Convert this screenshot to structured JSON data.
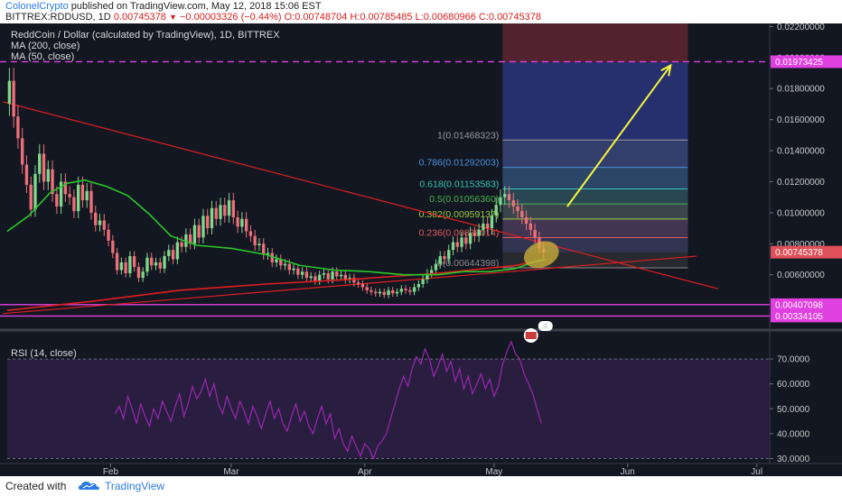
{
  "header": {
    "author": "ColonelCrypto",
    "published_text": "published on TradingView.com, May 12, 2018 15:06 EST",
    "symbol": "BITTREX:RDDUSD, 1D",
    "last": "0.00745378",
    "change": "−0.00003326 (−0.44%)",
    "ohlc": "O:0.00748704 H:0.00785485 L:0.00680966 C:0.00745378"
  },
  "legend": {
    "title": "ReddCoin / Dollar (calculated by TradingView), 1D, BITTREX",
    "ma200": "MA (200, close)",
    "ma50": "MA (50, close)",
    "rsi": "RSI (14, close)"
  },
  "footer": {
    "created_with": "Created with",
    "brand": "TradingView"
  },
  "colors": {
    "background": "#131722",
    "candle_up": "#7fd88c",
    "candle_down": "#ef6f7a",
    "ma50": "#28c828",
    "ma200": "#e01e1e",
    "level": "#e040e0",
    "arrow": "#f5f53c"
  },
  "icon_badge": "4",
  "chart_data": [
    {
      "type": "candlestick",
      "title": "ReddCoin / Dollar (calculated by TradingView), 1D, BITTREX",
      "x_range": [
        "2018-01-08",
        "2018-07-04"
      ],
      "x_ticks": [
        {
          "date": "2018-02-01",
          "label": "Feb"
        },
        {
          "date": "2018-03-01",
          "label": "Mar"
        },
        {
          "date": "2018-04-01",
          "label": "Apr"
        },
        {
          "date": "2018-05-01",
          "label": "May"
        },
        {
          "date": "2018-06-01",
          "label": "Jun"
        },
        {
          "date": "2018-07-01",
          "label": "Jul"
        }
      ],
      "ylim": [
        0.0029,
        0.0222
      ],
      "y_ticks": [
        "0.00600000",
        "0.00800000",
        "0.01000000",
        "0.01200000",
        "0.01400000",
        "0.01600000",
        "0.01800000",
        "0.02000000",
        "0.02200000"
      ],
      "last_price": {
        "value": 0.00745378,
        "label": "0.00745378"
      },
      "closes": [
        0.0185,
        0.0162,
        0.0148,
        0.0131,
        0.0118,
        0.0102,
        0.0125,
        0.0138,
        0.012,
        0.0128,
        0.0112,
        0.0104,
        0.012,
        0.0112,
        0.011,
        0.0101,
        0.0118,
        0.0108,
        0.0114,
        0.01,
        0.0092,
        0.0095,
        0.0089,
        0.0082,
        0.0074,
        0.0063,
        0.0068,
        0.0061,
        0.0072,
        0.0065,
        0.0058,
        0.0062,
        0.0071,
        0.0066,
        0.0068,
        0.0064,
        0.0072,
        0.0076,
        0.007,
        0.0081,
        0.0078,
        0.0086,
        0.008,
        0.0092,
        0.0084,
        0.0098,
        0.009,
        0.0103,
        0.0096,
        0.0105,
        0.0098,
        0.0108,
        0.0097,
        0.0091,
        0.0096,
        0.0088,
        0.0085,
        0.0079,
        0.008,
        0.0073,
        0.0074,
        0.0068,
        0.007,
        0.0066,
        0.0067,
        0.0063,
        0.0064,
        0.006,
        0.0062,
        0.0058,
        0.0059,
        0.0056,
        0.006,
        0.0061,
        0.0057,
        0.0062,
        0.0059,
        0.006,
        0.0057,
        0.0058,
        0.0055,
        0.0054,
        0.0052,
        0.005,
        0.0049,
        0.0048,
        0.0049,
        0.0047,
        0.005,
        0.0048,
        0.0049,
        0.0051,
        0.005,
        0.0049,
        0.0052,
        0.0054,
        0.0057,
        0.0061,
        0.0063,
        0.0067,
        0.0072,
        0.007,
        0.0076,
        0.0081,
        0.0078,
        0.0084,
        0.008,
        0.0087,
        0.0085,
        0.0089,
        0.0093,
        0.009,
        0.0098,
        0.0105,
        0.011,
        0.0112,
        0.0108,
        0.0104,
        0.0101,
        0.0097,
        0.0093,
        0.0089,
        0.0084,
        0.0077,
        0.00745
      ],
      "ma50": [
        [
          0,
          0.0088
        ],
        [
          5,
          0.0098
        ],
        [
          10,
          0.0113
        ],
        [
          14,
          0.0119
        ],
        [
          18,
          0.0121
        ],
        [
          23,
          0.0117
        ],
        [
          28,
          0.0111
        ],
        [
          33,
          0.0099
        ],
        [
          38,
          0.0085
        ],
        [
          44,
          0.0079
        ],
        [
          52,
          0.0077
        ],
        [
          60,
          0.0073
        ],
        [
          68,
          0.0066
        ],
        [
          76,
          0.0063
        ],
        [
          84,
          0.0062
        ],
        [
          92,
          0.006
        ],
        [
          100,
          0.006
        ],
        [
          106,
          0.0062
        ],
        [
          112,
          0.0062
        ],
        [
          118,
          0.0064
        ],
        [
          122,
          0.0068
        ],
        [
          125,
          0.007
        ]
      ],
      "ma200": [
        [
          0,
          0.0037
        ],
        [
          20,
          0.0043
        ],
        [
          40,
          0.005
        ],
        [
          60,
          0.0054
        ],
        [
          80,
          0.0057
        ],
        [
          100,
          0.0061
        ],
        [
          118,
          0.0066
        ],
        [
          125,
          0.007
        ]
      ],
      "trendlines": [
        {
          "from": [
            -1,
            0.01715
          ],
          "to": [
            165,
            0.0051
          ],
          "color": "#e01e1e"
        },
        {
          "from": [
            -1,
            0.0035
          ],
          "to": [
            160,
            0.0072
          ],
          "color": "#e01e1e"
        }
      ],
      "horizontal_levels": [
        {
          "value": 0.01973425,
          "label": "0.01973425",
          "style": "dashed"
        },
        {
          "value": 0.00407098,
          "label": "0.00407098",
          "style": "solid"
        },
        {
          "value": 0.00334105,
          "label": "0.00334105",
          "style": "solid"
        }
      ],
      "fib_retracement": [
        {
          "ratio": "1",
          "value": 0.01468323,
          "label": "1(0.01468323)",
          "color": "#9a9a9a"
        },
        {
          "ratio": "0.786",
          "value": 0.01292003,
          "label": "0.786(0.01292003)",
          "color": "#4a90d9"
        },
        {
          "ratio": "0.618",
          "value": 0.01153583,
          "label": "0.618(0.01153583)",
          "color": "#33c3b6"
        },
        {
          "ratio": "0.5",
          "value": 0.0105636,
          "label": "0.5(0.01056360)",
          "color": "#4caf50"
        },
        {
          "ratio": "0.382",
          "value": 0.00959137,
          "label": "0.382(0.00959137)",
          "color": "#9ccc3c"
        },
        {
          "ratio": "0.236",
          "value": 0.00839014,
          "label": "0.236(0.00839014)",
          "color": "#e05a5a"
        },
        {
          "ratio": "0",
          "value": 0.00644398,
          "label": "0(0.00644398)",
          "color": "#8a8a8a"
        }
      ],
      "fib_range_x": [
        115,
        158
      ],
      "target_box": {
        "x": [
          115,
          158
        ],
        "profit": [
          0.00745,
          0.0197
        ],
        "stop": [
          0.0197,
          0.0222
        ]
      },
      "arrow": {
        "from": [
          130,
          0.0104
        ],
        "to": [
          154,
          0.0195
        ]
      },
      "highlight_ellipse": {
        "x": 124,
        "y": 0.0073
      }
    },
    {
      "type": "line",
      "title": "RSI (14, close)",
      "ylim": [
        28,
        78
      ],
      "y_ticks": [
        "30.0000",
        "40.0000",
        "50.0000",
        "60.0000",
        "70.0000"
      ],
      "bands": [
        30,
        70
      ],
      "values": [
        48,
        51,
        46,
        55,
        50,
        44,
        52,
        47,
        43,
        50,
        46,
        53,
        49,
        45,
        51,
        56,
        47,
        52,
        59,
        54,
        57,
        62,
        55,
        60,
        52,
        48,
        55,
        50,
        46,
        53,
        49,
        44,
        51,
        47,
        42,
        48,
        53,
        46,
        50,
        44,
        41,
        47,
        52,
        45,
        49,
        43,
        40,
        46,
        51,
        44,
        48,
        38,
        42,
        36,
        33,
        39,
        35,
        31,
        36,
        34,
        30,
        35,
        37,
        40,
        46,
        52,
        58,
        63,
        59,
        66,
        71,
        68,
        74,
        70,
        63,
        67,
        72,
        65,
        69,
        61,
        66,
        58,
        63,
        56,
        60,
        64,
        58,
        62,
        55,
        59,
        68,
        73,
        77,
        72,
        70,
        64,
        60,
        56,
        50,
        44
      ]
    }
  ]
}
